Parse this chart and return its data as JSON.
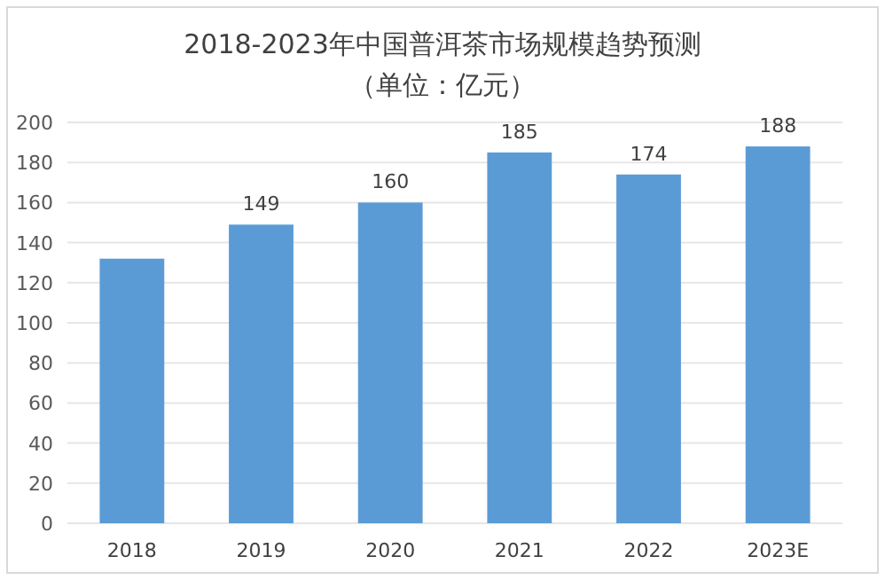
{
  "chart_data": {
    "type": "bar",
    "title": "2018-2023年中国普洱茶市场规模趋势预测",
    "subtitle": "（单位：亿元）",
    "categories": [
      "2018",
      "2019",
      "2020",
      "2021",
      "2022",
      "2023E"
    ],
    "values": [
      132,
      149,
      160,
      185,
      174,
      188
    ],
    "value_labels": [
      null,
      "149",
      "160",
      "185",
      "174",
      "188"
    ],
    "color": "#5b9bd5",
    "ylim": [
      0,
      200
    ],
    "yticks": [
      0,
      20,
      40,
      60,
      80,
      100,
      120,
      140,
      160,
      180,
      200
    ],
    "grid": "y"
  }
}
